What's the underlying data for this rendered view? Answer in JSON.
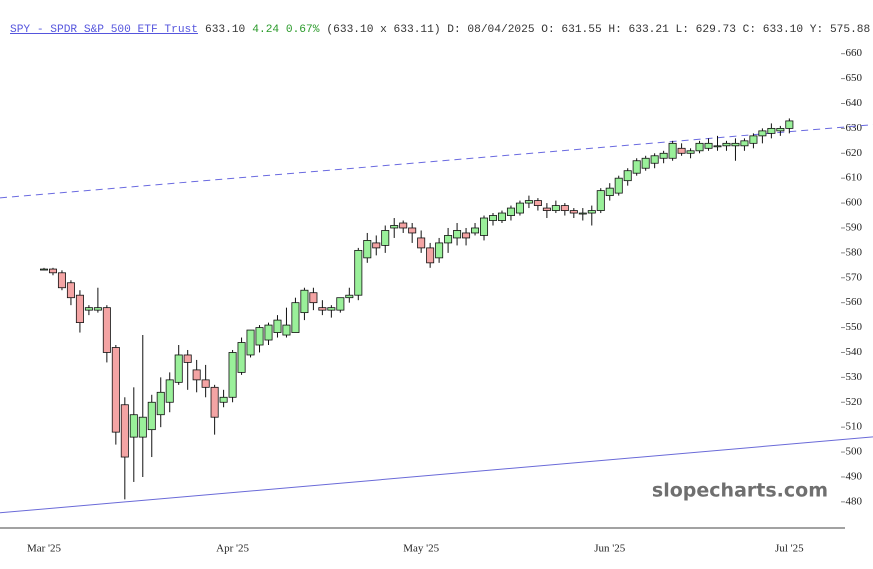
{
  "header": {
    "symbol": "SPY - SPDR S&P 500 ETF Trust",
    "last": "633.10",
    "change": "4.24 0.67%",
    "quote": "(633.10 x 633.11) D: 08/04/2025 O: 631.55 H: 633.21 L: 629.73 C: 633.10 Y: 575.88"
  },
  "watermark": "slopecharts.com",
  "chart_data": {
    "type": "candlestick",
    "categories": [
      "Mar '25",
      null,
      null,
      null,
      null,
      null,
      null,
      null,
      null,
      null,
      null,
      null,
      null,
      null,
      null,
      null,
      null,
      null,
      null,
      null,
      null,
      "Apr '25",
      null,
      null,
      null,
      null,
      null,
      null,
      null,
      null,
      null,
      null,
      null,
      null,
      null,
      null,
      null,
      null,
      null,
      null,
      null,
      null,
      "May '25",
      null,
      null,
      null,
      null,
      null,
      null,
      null,
      null,
      null,
      null,
      null,
      null,
      null,
      null,
      null,
      null,
      null,
      null,
      null,
      null,
      "Jun '25",
      null,
      null,
      null,
      null,
      null,
      null,
      null,
      null,
      null,
      null,
      null,
      null,
      null,
      null,
      null,
      null,
      null,
      null,
      null,
      "Jul '25"
    ],
    "open": [
      573.5,
      573.5,
      572,
      568,
      563,
      557,
      557,
      558,
      542,
      519,
      506,
      506,
      509,
      515,
      520,
      528,
      539,
      533,
      529,
      526,
      520,
      522,
      532,
      539,
      543,
      545,
      548,
      547,
      548,
      556,
      564,
      558,
      557,
      557,
      562,
      563,
      578,
      584,
      583,
      590,
      592,
      590,
      586,
      582,
      578,
      584,
      586,
      588,
      588,
      587,
      593,
      593,
      595,
      596,
      600,
      601,
      598,
      597,
      599,
      597,
      596,
      596,
      597,
      603,
      604,
      609,
      612,
      614,
      616,
      618,
      618,
      622,
      620,
      621,
      622,
      623,
      623,
      623,
      623,
      624,
      627,
      628,
      629,
      630
    ],
    "high": [
      574,
      574,
      573,
      569,
      565,
      559,
      566,
      559,
      543,
      522,
      526,
      547,
      523,
      530,
      532,
      543,
      541,
      537,
      535,
      527,
      525,
      541,
      546,
      549,
      551,
      552,
      555,
      558,
      562,
      566,
      566,
      561,
      559,
      562,
      566,
      582,
      588,
      587,
      591,
      594,
      593,
      592,
      589,
      584,
      586,
      590,
      592,
      590,
      592,
      595,
      596,
      597,
      599,
      601,
      603,
      602,
      600,
      601,
      600,
      598,
      598,
      599,
      606,
      608,
      611,
      614,
      618,
      619,
      620,
      621,
      625,
      624,
      622,
      625,
      626,
      627,
      625,
      626,
      626,
      628,
      630,
      632,
      631,
      634
    ],
    "low": [
      573,
      571,
      565,
      559,
      548,
      555,
      556,
      536,
      503,
      481,
      488,
      490,
      498,
      510,
      516,
      527,
      525,
      524,
      522,
      507,
      518,
      520,
      531,
      538,
      540,
      543,
      546,
      546,
      548,
      553,
      557,
      555,
      554,
      556,
      560,
      561,
      576,
      579,
      580,
      586,
      588,
      584,
      580,
      574,
      576,
      580,
      583,
      583,
      587,
      585,
      591,
      592,
      593,
      595,
      598,
      597,
      594,
      596,
      595,
      594,
      593,
      591,
      596,
      601,
      603,
      607,
      611,
      613,
      614,
      616,
      617,
      619,
      618,
      620,
      621,
      621,
      621,
      617,
      621,
      622,
      624,
      626,
      627,
      628
    ],
    "close": [
      573.5,
      572,
      566,
      562,
      552,
      558,
      558,
      540,
      508,
      498,
      515,
      514,
      520,
      524,
      529,
      539,
      536,
      529,
      526,
      514,
      522,
      540,
      544,
      549,
      550,
      551,
      553,
      551,
      560,
      565,
      560,
      557,
      558,
      562,
      563,
      581,
      585,
      582,
      589,
      591,
      590,
      588,
      582,
      576,
      584,
      587,
      589,
      586,
      590,
      594,
      595,
      596,
      598,
      600,
      601,
      599,
      597,
      599,
      597,
      596,
      596,
      597,
      605,
      606,
      610,
      613,
      617,
      618,
      619,
      620,
      624,
      620,
      621,
      624,
      624,
      623,
      624,
      624,
      625,
      627,
      629,
      630,
      630,
      633
    ],
    "up_color": "#9af09a",
    "down_color": "#f4a4a4",
    "ylim": [
      469.5,
      665.5
    ],
    "yticks": [
      480,
      490,
      500,
      510,
      520,
      530,
      540,
      550,
      560,
      570,
      580,
      590,
      600,
      610,
      620,
      630,
      640,
      650,
      660
    ],
    "trendlines": [
      {
        "style": "dashed",
        "color": "#6a6ae0",
        "y": [
          602.1,
          631.5
        ]
      },
      {
        "style": "solid",
        "color": "#6a6ad8",
        "y": [
          475.6,
          506.1
        ]
      }
    ]
  }
}
